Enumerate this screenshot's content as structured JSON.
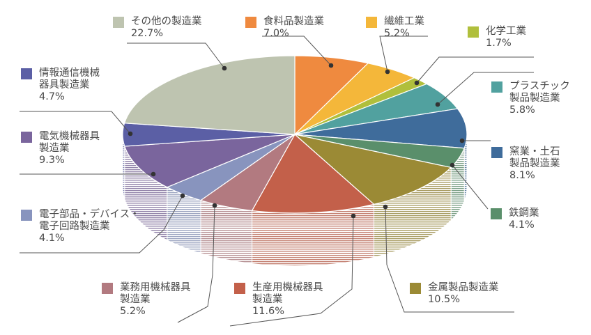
{
  "chart_data": {
    "type": "pie",
    "style": "3d",
    "unit": "%",
    "slices": [
      {
        "label_lines": [
          "食料品製造業"
        ],
        "value": 7.0,
        "value_label": "7.0%",
        "color": "#ef8a3f"
      },
      {
        "label_lines": [
          "繊維工業"
        ],
        "value": 5.2,
        "value_label": "5.2%",
        "color": "#f4b73a"
      },
      {
        "label_lines": [
          "化学工業"
        ],
        "value": 1.7,
        "value_label": "1.7%",
        "color": "#b0bf3c"
      },
      {
        "label_lines": [
          "プラスチック",
          "製品製造業"
        ],
        "value": 5.8,
        "value_label": "5.8%",
        "color": "#51a19f"
      },
      {
        "label_lines": [
          "窯業・土石",
          "製品製造業"
        ],
        "value": 8.1,
        "value_label": "8.1%",
        "color": "#3f6c9b"
      },
      {
        "label_lines": [
          "鉄鋼業"
        ],
        "value": 4.1,
        "value_label": "4.1%",
        "color": "#5a8f6b"
      },
      {
        "label_lines": [
          "金属製品製造業"
        ],
        "value": 10.5,
        "value_label": "10.5%",
        "color": "#9b8a35"
      },
      {
        "label_lines": [
          "生産用機械器具",
          "製造業"
        ],
        "value": 11.6,
        "value_label": "11.6%",
        "color": "#c3604a"
      },
      {
        "label_lines": [
          "業務用機械器具",
          "製造業"
        ],
        "value": 5.2,
        "value_label": "5.2%",
        "color": "#b27a80"
      },
      {
        "label_lines": [
          "電子部品・デバイス・",
          "電子回路製造業"
        ],
        "value": 4.1,
        "value_label": "4.1%",
        "color": "#8894be"
      },
      {
        "label_lines": [
          "電気機械器具",
          "製造業"
        ],
        "value": 9.3,
        "value_label": "9.3%",
        "color": "#7a659d"
      },
      {
        "label_lines": [
          "情報通信機械",
          "器具製造業"
        ],
        "value": 4.7,
        "value_label": "4.7%",
        "color": "#5b5fa5"
      },
      {
        "label_lines": [
          "その他の製造業"
        ],
        "value": 22.7,
        "value_label": "22.7%",
        "color": "#bec4b0"
      }
    ]
  }
}
